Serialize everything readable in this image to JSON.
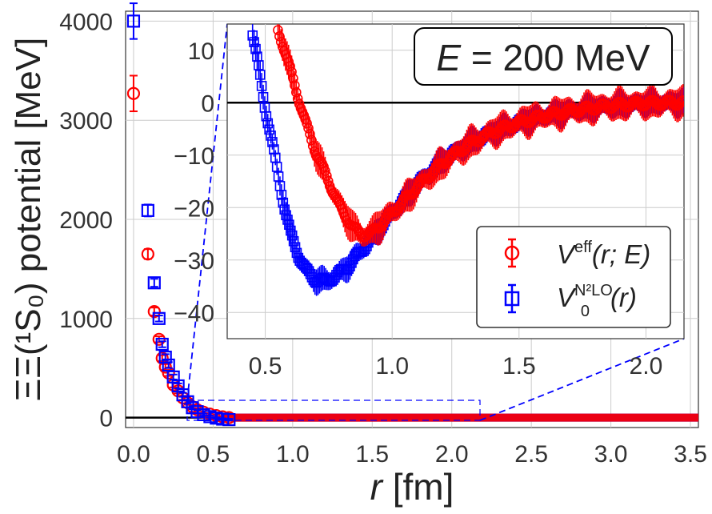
{
  "chart_data": {
    "type": "scatter",
    "main": {
      "xlabel_var": "r",
      "xlabel_unit": "[fm]",
      "ylabel": "ΞΞ(¹S₀) potential [MeV]",
      "xlim": [
        -0.05,
        3.55
      ],
      "ylim": [
        -100,
        4100
      ],
      "xticks": [
        0.0,
        0.5,
        1.0,
        1.5,
        2.0,
        2.5,
        3.0,
        3.5
      ],
      "xtick_labels": [
        "0.0",
        "0.5",
        "1.0",
        "1.5",
        "2.0",
        "2.5",
        "3.0",
        "3.5"
      ],
      "yticks": [
        0,
        1000,
        2000,
        3000,
        4000
      ],
      "ytick_labels": [
        "0",
        "1000",
        "2000",
        "3000",
        "4000"
      ],
      "series": [
        {
          "name": "V_eff(r;E)",
          "color": "#ff0000",
          "marker": "circle",
          "points": [
            {
              "x": 0.0,
              "y": 3270,
              "err": 180
            },
            {
              "x": 0.09,
              "y": 1650,
              "err": 50
            },
            {
              "x": 0.13,
              "y": 1070,
              "err": 40
            },
            {
              "x": 0.16,
              "y": 790,
              "err": 30
            },
            {
              "x": 0.18,
              "y": 600,
              "err": 30
            },
            {
              "x": 0.2,
              "y": 510,
              "err": 30
            },
            {
              "x": 0.22,
              "y": 450,
              "err": 30
            },
            {
              "x": 0.25,
              "y": 330,
              "err": 25
            },
            {
              "x": 0.28,
              "y": 270,
              "err": 25
            },
            {
              "x": 0.31,
              "y": 200,
              "err": 20
            },
            {
              "x": 0.34,
              "y": 150,
              "err": 20
            },
            {
              "x": 0.37,
              "y": 110,
              "err": 15
            },
            {
              "x": 0.4,
              "y": 80,
              "err": 15
            },
            {
              "x": 0.44,
              "y": 55,
              "err": 10
            },
            {
              "x": 0.48,
              "y": 35,
              "err": 10
            },
            {
              "x": 0.52,
              "y": 20,
              "err": 10
            },
            {
              "x": 0.56,
              "y": 8,
              "err": 8
            },
            {
              "x": 0.6,
              "y": 0,
              "err": 8
            }
          ]
        },
        {
          "name": "V0_N2LO(r)",
          "color": "#0000ff",
          "marker": "square",
          "points": [
            {
              "x": 0.0,
              "y": 4000,
              "err": 180
            },
            {
              "x": 0.09,
              "y": 2090,
              "err": 60
            },
            {
              "x": 0.13,
              "y": 1360,
              "err": 40
            },
            {
              "x": 0.16,
              "y": 1000,
              "err": 30
            },
            {
              "x": 0.18,
              "y": 740,
              "err": 30
            },
            {
              "x": 0.2,
              "y": 610,
              "err": 30
            },
            {
              "x": 0.22,
              "y": 530,
              "err": 30
            },
            {
              "x": 0.25,
              "y": 410,
              "err": 25
            },
            {
              "x": 0.28,
              "y": 320,
              "err": 25
            },
            {
              "x": 0.31,
              "y": 230,
              "err": 20
            },
            {
              "x": 0.34,
              "y": 160,
              "err": 20
            },
            {
              "x": 0.37,
              "y": 100,
              "err": 15
            },
            {
              "x": 0.4,
              "y": 60,
              "err": 15
            },
            {
              "x": 0.44,
              "y": 30,
              "err": 10
            },
            {
              "x": 0.48,
              "y": 10,
              "err": 10
            },
            {
              "x": 0.52,
              "y": -5,
              "err": 8
            },
            {
              "x": 0.56,
              "y": -15,
              "err": 8
            },
            {
              "x": 0.6,
              "y": -20,
              "err": 8
            }
          ]
        }
      ]
    },
    "inset": {
      "xlim": [
        0.35,
        2.15
      ],
      "ylim": [
        -45,
        15
      ],
      "xticks": [
        0.5,
        1.0,
        1.5,
        2.0
      ],
      "xtick_labels": [
        "0.5",
        "1.0",
        "1.5",
        "2.0"
      ],
      "yticks": [
        10,
        0,
        -10,
        -20,
        -30,
        -40
      ],
      "ytick_labels": [
        "10",
        "0",
        "−10",
        "−20",
        "−30",
        "−40"
      ],
      "series": [
        {
          "name": "V_eff(r;E)",
          "color": "#ff0000",
          "curve": [
            [
              0.55,
              13.8
            ],
            [
              0.57,
              11
            ],
            [
              0.6,
              6
            ],
            [
              0.63,
              1
            ],
            [
              0.66,
              -4
            ],
            [
              0.7,
              -9.5
            ],
            [
              0.75,
              -15
            ],
            [
              0.8,
              -20.5
            ],
            [
              0.85,
              -24
            ],
            [
              0.88,
              -25.2
            ],
            [
              0.92,
              -24.8
            ],
            [
              0.96,
              -23
            ],
            [
              1.0,
              -21
            ],
            [
              1.1,
              -16
            ],
            [
              1.2,
              -11.5
            ],
            [
              1.3,
              -8
            ],
            [
              1.4,
              -5.5
            ],
            [
              1.5,
              -3.8
            ],
            [
              1.6,
              -2.5
            ],
            [
              1.7,
              -1.6
            ],
            [
              1.8,
              -0.9
            ],
            [
              1.9,
              -0.4
            ],
            [
              2.0,
              -0.1
            ],
            [
              2.15,
              0
            ]
          ],
          "errband": 2.5
        },
        {
          "name": "V0_N2LO(r)",
          "color": "#0000ff",
          "curve": [
            [
              0.45,
              13
            ],
            [
              0.48,
              5
            ],
            [
              0.5,
              -1
            ],
            [
              0.52,
              -6
            ],
            [
              0.54,
              -11
            ],
            [
              0.56,
              -16
            ],
            [
              0.58,
              -21
            ],
            [
              0.6,
              -25
            ],
            [
              0.63,
              -29
            ],
            [
              0.66,
              -32
            ],
            [
              0.7,
              -33.8
            ],
            [
              0.74,
              -34
            ],
            [
              0.78,
              -33
            ],
            [
              0.83,
              -31
            ],
            [
              0.9,
              -27
            ],
            [
              1.0,
              -21
            ],
            [
              1.1,
              -15.5
            ],
            [
              1.2,
              -11
            ],
            [
              1.3,
              -7.8
            ],
            [
              1.4,
              -5.5
            ],
            [
              1.5,
              -3.8
            ],
            [
              1.6,
              -2.5
            ],
            [
              1.7,
              -1.6
            ],
            [
              1.8,
              -0.9
            ],
            [
              1.9,
              -0.4
            ],
            [
              2.0,
              -0.1
            ],
            [
              2.15,
              0
            ]
          ],
          "errband": 2.0
        }
      ]
    },
    "annotation": {
      "energy_var": "E",
      "energy_text": " = 200 MeV"
    },
    "legend": {
      "placement": "lower-right of inset",
      "entries": [
        {
          "symbol": "V",
          "sup": "eff",
          "args": "(r; E)"
        },
        {
          "symbol": "V",
          "sup": "N²LO",
          "sub": "0",
          "args": "(r)"
        }
      ]
    }
  }
}
